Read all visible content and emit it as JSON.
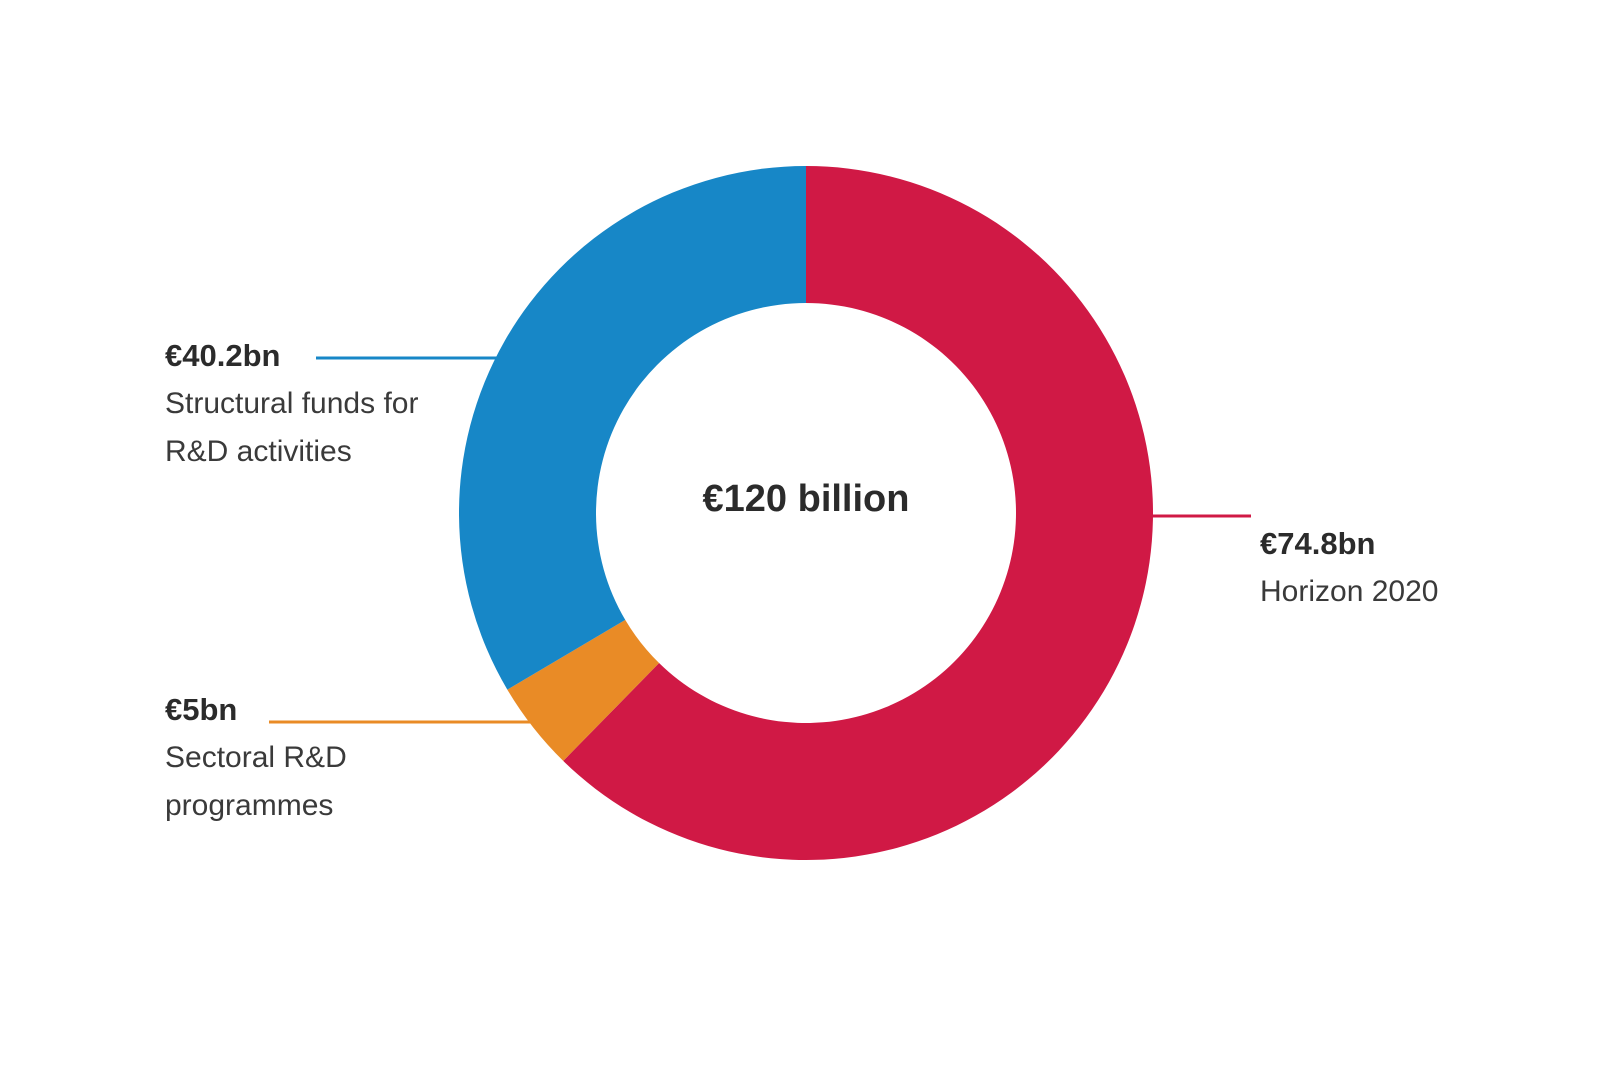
{
  "chart_data": {
    "type": "pie",
    "variant": "donut",
    "total_label": "€120 billion",
    "total": 120,
    "unit": "€ billion",
    "slices": [
      {
        "name": "Horizon 2020",
        "value": 74.8,
        "value_label": "€74.8bn",
        "color": "#d01945"
      },
      {
        "name": "Sectoral R&D programmes",
        "value": 5,
        "value_label": "€5bn",
        "color": "#e98b26"
      },
      {
        "name": "Structural funds for R&D activities",
        "value": 40.2,
        "value_label": "€40.2bn",
        "color": "#1787c7"
      }
    ],
    "legend": "direct-labels"
  },
  "labels": {
    "structural": {
      "value": "€40.2bn",
      "line1": "Structural funds for",
      "line2": "R&D activities"
    },
    "sectoral": {
      "value": "€5bn",
      "line1": "Sectoral R&D",
      "line2": "programmes"
    },
    "horizon": {
      "value": "€74.8bn",
      "line1": "Horizon 2020"
    }
  }
}
